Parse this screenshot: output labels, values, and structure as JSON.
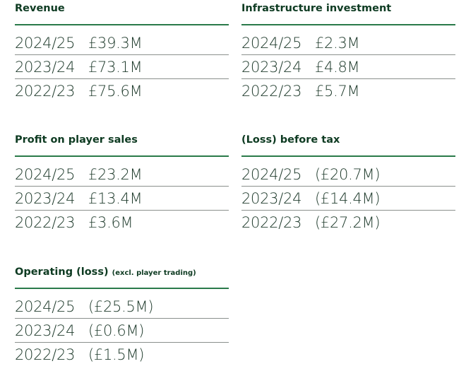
{
  "sections": [
    {
      "title": "Revenue",
      "rows": [
        {
          "year": "2024/25",
          "value": "£39.3M"
        },
        {
          "year": "2023/24",
          "value": "£73.1M"
        },
        {
          "year": "2022/23",
          "value": "£75.6M"
        }
      ]
    },
    {
      "title": "Infrastructure investment",
      "rows": [
        {
          "year": "2024/25",
          "value": "£2.3M"
        },
        {
          "year": "2023/24",
          "value": "£4.8M"
        },
        {
          "year": "2022/23",
          "value": "£5.7M"
        }
      ]
    },
    {
      "title": "Profit on player sales",
      "rows": [
        {
          "year": "2024/25",
          "value": "£23.2M"
        },
        {
          "year": "2023/24",
          "value": "£13.4M"
        },
        {
          "year": "2022/23",
          "value": "£3.6M"
        }
      ]
    },
    {
      "title": "(Loss) before tax",
      "rows": [
        {
          "year": "2024/25",
          "value": "(£20.7M)"
        },
        {
          "year": "2023/24",
          "value": "(£14.4M)"
        },
        {
          "year": "2022/23",
          "value": "(£27.2M)"
        }
      ]
    },
    {
      "title": "Operating (loss)",
      "subtitle": "(excl. player trading)",
      "rows": [
        {
          "year": "2024/25",
          "value": "(£25.5M)"
        },
        {
          "year": "2023/24",
          "value": "(£0.6M)"
        },
        {
          "year": "2022/23",
          "value": "(£1.5M)"
        }
      ]
    }
  ]
}
